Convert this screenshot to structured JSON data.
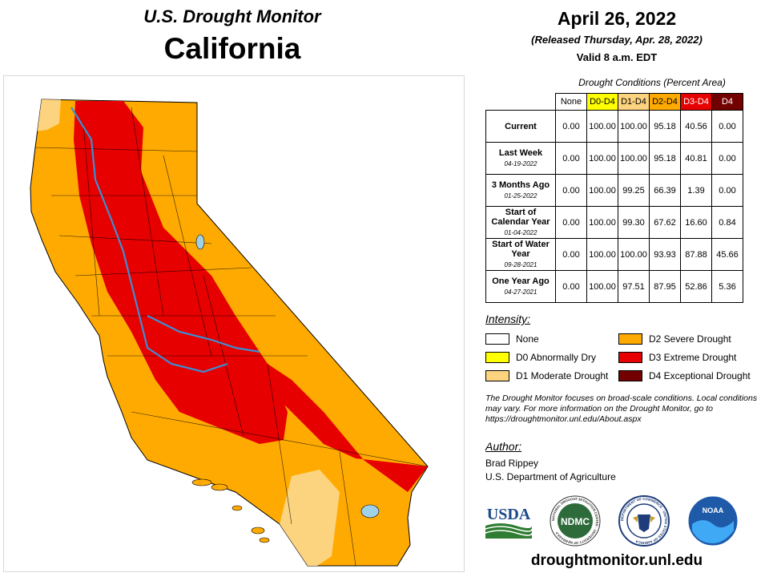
{
  "header": {
    "title": "U.S. Drought Monitor",
    "state": "California",
    "date": "April 26, 2022",
    "released": "(Released Thursday, Apr. 28, 2022)",
    "valid": "Valid 8 a.m. EDT"
  },
  "table": {
    "caption": "Drought Conditions (Percent Area)",
    "columns": [
      "None",
      "D0-D4",
      "D1-D4",
      "D2-D4",
      "D3-D4",
      "D4"
    ],
    "column_colors": [
      "#ffffff",
      "#ffff00",
      "#fcd37f",
      "#ffaa00",
      "#e60000",
      "#730000"
    ],
    "rows": [
      {
        "label": "Current",
        "sublabel": "",
        "values": [
          "0.00",
          "100.00",
          "100.00",
          "95.18",
          "40.56",
          "0.00"
        ]
      },
      {
        "label": "Last Week",
        "sublabel": "04-19-2022",
        "values": [
          "0.00",
          "100.00",
          "100.00",
          "95.18",
          "40.81",
          "0.00"
        ]
      },
      {
        "label": "3 Months Ago",
        "sublabel": "01-25-2022",
        "values": [
          "0.00",
          "100.00",
          "99.25",
          "66.39",
          "1.39",
          "0.00"
        ]
      },
      {
        "label": "Start of Calendar Year",
        "sublabel": "01-04-2022",
        "values": [
          "0.00",
          "100.00",
          "99.30",
          "67.62",
          "16.60",
          "0.84"
        ]
      },
      {
        "label": "Start of Water Year",
        "sublabel": "09-28-2021",
        "values": [
          "0.00",
          "100.00",
          "100.00",
          "93.93",
          "87.88",
          "45.66"
        ]
      },
      {
        "label": "One Year Ago",
        "sublabel": "04-27-2021",
        "values": [
          "0.00",
          "100.00",
          "97.51",
          "87.95",
          "52.86",
          "5.36"
        ]
      }
    ]
  },
  "legend": {
    "title": "Intensity:",
    "items": [
      {
        "label": "None",
        "color": "#ffffff"
      },
      {
        "label": "D0 Abnormally Dry",
        "color": "#ffff00"
      },
      {
        "label": "D1 Moderate Drought",
        "color": "#fcd37f"
      },
      {
        "label": "D2 Severe Drought",
        "color": "#ffaa00"
      },
      {
        "label": "D3 Extreme Drought",
        "color": "#e60000"
      },
      {
        "label": "D4 Exceptional Drought",
        "color": "#730000"
      }
    ]
  },
  "note": "The Drought Monitor focuses on broad-scale conditions. Local conditions may vary. For more information on the Drought Monitor, go to https://droughtmonitor.unl.edu/About.aspx",
  "author": {
    "title": "Author:",
    "name": "Brad Rippey",
    "org": "U.S. Department of Agriculture"
  },
  "logos": {
    "usda": "USDA",
    "ndmc": "NDMC",
    "ndmc_ring": "NATIONAL DROUGHT MITIGATION CENTER · UNIVERSITY OF NEBRASKA",
    "commerce_ring": "DEPARTMENT OF COMMERCE · UNITED STATES OF AMERICA",
    "noaa": "NOAA"
  },
  "url": "droughtmonitor.unl.edu",
  "map": {
    "colors": {
      "d1": "#fcd37f",
      "d2": "#ffaa00",
      "d3": "#e60000",
      "water": "#9fd1e8",
      "river": "#3b8fd6",
      "border": "#000000"
    }
  }
}
